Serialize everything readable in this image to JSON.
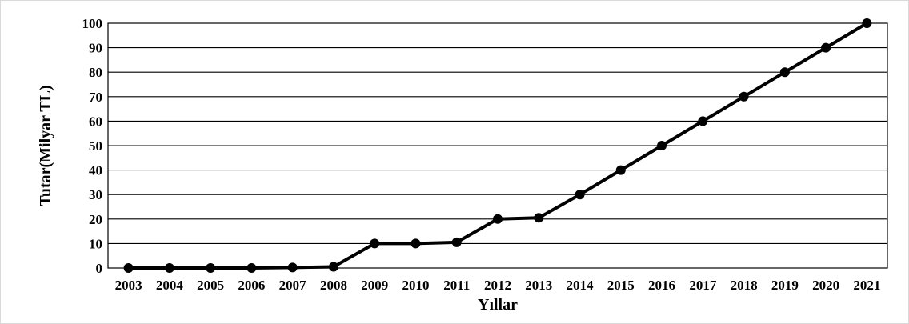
{
  "chart_data": {
    "type": "line",
    "title": "",
    "xlabel": "Yıllar",
    "ylabel": "Tutar(Milyar  TL)",
    "categories": [
      "2003",
      "2004",
      "2005",
      "2006",
      "2007",
      "2008",
      "2009",
      "2010",
      "2011",
      "2012",
      "2013",
      "2014",
      "2015",
      "2016",
      "2017",
      "2018",
      "2019",
      "2020",
      "2021"
    ],
    "series": [
      {
        "values": [
          0,
          0,
          0,
          0,
          0.2,
          0.5,
          10,
          10,
          10.5,
          20,
          20.5,
          30,
          40,
          50,
          60,
          70,
          80,
          90,
          100
        ]
      }
    ],
    "yticks": [
      "0",
      "10",
      "20",
      "30",
      "40",
      "50",
      "60",
      "70",
      "80",
      "90",
      "100"
    ],
    "ylim": [
      0,
      100
    ],
    "grid": true,
    "legend": "none",
    "line_color": "#000000",
    "marker_color": "#000000"
  }
}
